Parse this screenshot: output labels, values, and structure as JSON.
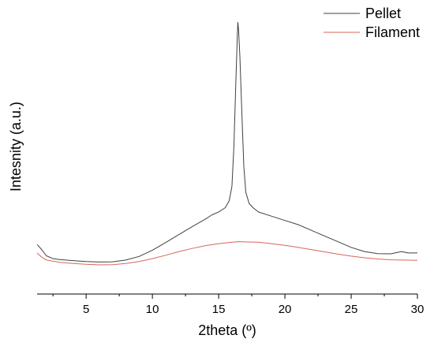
{
  "chart_data": {
    "type": "line",
    "title": "",
    "xlabel": "2theta (º)",
    "ylabel": "Intesnity (a.u.)",
    "xlim": [
      1.3,
      30
    ],
    "ylim": [
      0,
      1
    ],
    "x_ticks": [
      5,
      10,
      15,
      20,
      25,
      30
    ],
    "y_ticks_shown": false,
    "grid": false,
    "legend_position": "top-right",
    "series": [
      {
        "name": "Pellet",
        "color": "#404040",
        "points": [
          [
            1.3,
            0.175
          ],
          [
            1.6,
            0.16
          ],
          [
            2.0,
            0.135
          ],
          [
            2.5,
            0.125
          ],
          [
            3,
            0.122
          ],
          [
            4,
            0.118
          ],
          [
            5,
            0.115
          ],
          [
            6,
            0.113
          ],
          [
            7,
            0.114
          ],
          [
            8,
            0.12
          ],
          [
            9,
            0.133
          ],
          [
            10,
            0.155
          ],
          [
            11,
            0.182
          ],
          [
            12,
            0.21
          ],
          [
            13,
            0.238
          ],
          [
            14,
            0.265
          ],
          [
            14.5,
            0.28
          ],
          [
            15,
            0.29
          ],
          [
            15.5,
            0.305
          ],
          [
            15.8,
            0.33
          ],
          [
            16.0,
            0.38
          ],
          [
            16.15,
            0.52
          ],
          [
            16.3,
            0.75
          ],
          [
            16.4,
            0.9
          ],
          [
            16.45,
            0.96
          ],
          [
            16.5,
            0.935
          ],
          [
            16.6,
            0.84
          ],
          [
            16.75,
            0.64
          ],
          [
            16.9,
            0.45
          ],
          [
            17.05,
            0.36
          ],
          [
            17.3,
            0.32
          ],
          [
            17.6,
            0.305
          ],
          [
            18,
            0.29
          ],
          [
            19,
            0.275
          ],
          [
            20,
            0.26
          ],
          [
            21,
            0.245
          ],
          [
            22,
            0.225
          ],
          [
            23,
            0.205
          ],
          [
            24,
            0.185
          ],
          [
            25,
            0.165
          ],
          [
            26,
            0.15
          ],
          [
            27,
            0.143
          ],
          [
            28,
            0.142
          ],
          [
            28.8,
            0.15
          ],
          [
            29.3,
            0.145
          ],
          [
            30,
            0.145
          ]
        ]
      },
      {
        "name": "Filament",
        "color": "#d9655a",
        "points": [
          [
            1.3,
            0.145
          ],
          [
            1.6,
            0.132
          ],
          [
            2.0,
            0.12
          ],
          [
            2.5,
            0.116
          ],
          [
            3,
            0.112
          ],
          [
            4,
            0.108
          ],
          [
            5,
            0.105
          ],
          [
            6,
            0.103
          ],
          [
            7,
            0.104
          ],
          [
            8,
            0.108
          ],
          [
            9,
            0.115
          ],
          [
            10,
            0.125
          ],
          [
            11,
            0.137
          ],
          [
            12,
            0.15
          ],
          [
            13,
            0.161
          ],
          [
            14,
            0.171
          ],
          [
            15,
            0.178
          ],
          [
            16,
            0.183
          ],
          [
            16.5,
            0.185
          ],
          [
            17,
            0.184
          ],
          [
            18,
            0.183
          ],
          [
            19,
            0.178
          ],
          [
            20,
            0.172
          ],
          [
            21,
            0.165
          ],
          [
            22,
            0.157
          ],
          [
            23,
            0.149
          ],
          [
            24,
            0.141
          ],
          [
            25,
            0.134
          ],
          [
            26,
            0.128
          ],
          [
            27,
            0.124
          ],
          [
            28,
            0.121
          ],
          [
            29,
            0.12
          ],
          [
            30,
            0.119
          ]
        ]
      }
    ]
  }
}
